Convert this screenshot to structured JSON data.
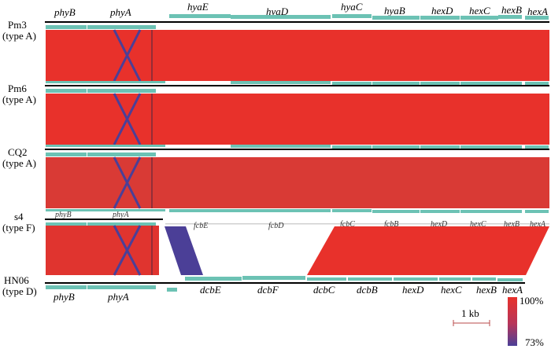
{
  "strains": [
    {
      "name": "Pm3",
      "type": "(type A)"
    },
    {
      "name": "Pm6",
      "type": "(type A)"
    },
    {
      "name": "CQ2",
      "type": "(type A)"
    },
    {
      "name": "s4",
      "type": "(type F)"
    },
    {
      "name": "HN06",
      "type": "(type D)"
    }
  ],
  "gene_labels": {
    "pm3_top": [
      "phyB",
      "phyA",
      "hyaE",
      "hyaD",
      "hyaC",
      "hyaB",
      "hexD",
      "hexC",
      "hexB",
      "hexA"
    ],
    "s4_top": [
      "phyB",
      "phyA"
    ],
    "s4_bottom": [
      "fcbE",
      "fcbD",
      "fcbC",
      "fcbB",
      "hexD",
      "hexC",
      "hexB",
      "hexA"
    ],
    "hn06_bottom": [
      "phyB",
      "phyA",
      "dcbE",
      "dcbF",
      "dcbC",
      "dcbB",
      "hexD",
      "hexC",
      "hexB",
      "hexA"
    ]
  },
  "scale_bar": {
    "label": "1 kb"
  },
  "identity_legend": {
    "max_label": "100%",
    "min_label": "73%",
    "max_color": "#e8312b",
    "min_color": "#4b3f97"
  },
  "colors": {
    "gene_arrow": "#6cc2b4",
    "backbone": "#000000",
    "block_high": "#e8312b",
    "block_mid": "#d93a35",
    "inversion": "#4b3f97"
  }
}
